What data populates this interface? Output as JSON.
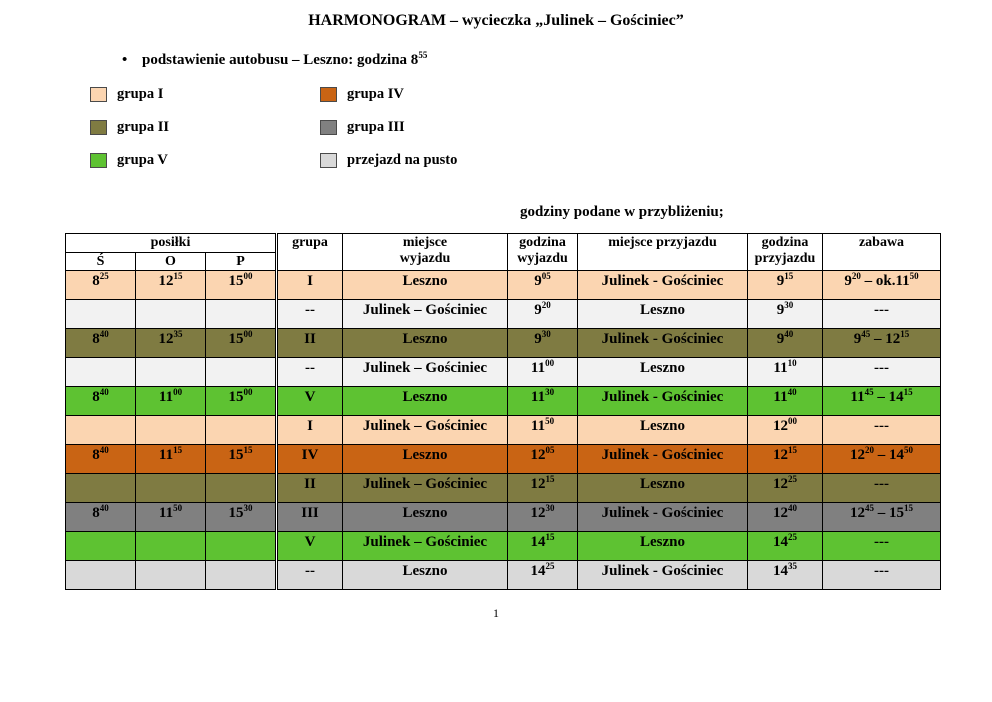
{
  "page": {
    "title": "HARMONOGRAM – wycieczka „Julinek – Gościniec”",
    "bullet_marker": "•",
    "bullet": "podstawienie autobusu – Leszno:  godzina 8^55",
    "note": "godziny podane w przybliżeniu;",
    "page_number": "1"
  },
  "colors": {
    "grupa1": "#FBD5B1",
    "grupa2": "#7F7B42",
    "grupa3": "#808080",
    "grupa4": "#C96414",
    "grupa5": "#5EC232",
    "pusto": "#D9D9D9",
    "pusto_light": "#F2F2F2"
  },
  "legend": {
    "column1": [
      {
        "label": "grupa I",
        "color": "grupa1"
      },
      {
        "label": "grupa II",
        "color": "grupa2"
      },
      {
        "label": "grupa V",
        "color": "grupa5"
      }
    ],
    "column2": [
      {
        "label": "grupa IV",
        "color": "grupa4"
      },
      {
        "label": "grupa III",
        "color": "grupa3"
      },
      {
        "label": "przejazd na pusto",
        "color": "pusto"
      }
    ]
  },
  "table": {
    "header": {
      "posilki": "posiłki",
      "s": "Ś",
      "o": "O",
      "p": "P",
      "grupa": "grupa",
      "miejsce_wyjazdu": "miejsce\nwyjazdu",
      "godzina_wyjazdu": "godzina\nwyjazdu",
      "miejsce_przyjazdu": "miejsce przyjazdu",
      "godzina_przyjazdu": "godzina\nprzyjazdu",
      "zabawa": "zabawa"
    },
    "rows": [
      {
        "color": "grupa1",
        "s": "8^25",
        "o": "12^15",
        "p": "15^00",
        "grupa": "I",
        "from": "Leszno",
        "dep": "9^05",
        "to": "Julinek - Gościniec",
        "arr": "9^15",
        "zabawa": "9^20 – ok.11^50"
      },
      {
        "color": "pusto_light",
        "s": "",
        "o": "",
        "p": "",
        "grupa": "--",
        "from": "Julinek – Gościniec",
        "dep": "9^20",
        "to": "Leszno",
        "arr": "9^30",
        "zabawa": "---"
      },
      {
        "color": "grupa2",
        "s": "8^40",
        "o": "12^35",
        "p": "15^00",
        "grupa": "II",
        "from": "Leszno",
        "dep": "9^30",
        "to": "Julinek - Gościniec",
        "arr": "9^40",
        "zabawa": "9^45 – 12^15"
      },
      {
        "color": "pusto_light",
        "s": "",
        "o": "",
        "p": "",
        "grupa": "--",
        "from": "Julinek – Gościniec",
        "dep": "11^00",
        "to": "Leszno",
        "arr": "11^10",
        "zabawa": "---"
      },
      {
        "color": "grupa5",
        "s": "8^40",
        "o": "11^00",
        "p": "15^00",
        "grupa": "V",
        "from": "Leszno",
        "dep": "11^30",
        "to": "Julinek - Gościniec",
        "arr": "11^40",
        "zabawa": "11^45 – 14^15"
      },
      {
        "color": "grupa1",
        "s": "",
        "o": "",
        "p": "",
        "grupa": "I",
        "from": "Julinek – Gościniec",
        "dep": "11^50",
        "to": "Leszno",
        "arr": "12^00",
        "zabawa": "---"
      },
      {
        "color": "grupa4",
        "s": "8^40",
        "o": "11^15",
        "p": "15^15",
        "grupa": "IV",
        "from": "Leszno",
        "dep": "12^05",
        "to": "Julinek - Gościniec",
        "arr": "12^15",
        "zabawa": "12^20 – 14^50"
      },
      {
        "color": "grupa2",
        "s": "",
        "o": "",
        "p": "",
        "grupa": "II",
        "from": "Julinek – Gościniec",
        "dep": "12^15",
        "to": "Leszno",
        "arr": "12^25",
        "zabawa": "---"
      },
      {
        "color": "grupa3",
        "s": "8^40",
        "o": "11^50",
        "p": "15^30",
        "grupa": "III",
        "from": "Leszno",
        "dep": "12^30",
        "to": "Julinek - Gościniec",
        "arr": "12^40",
        "zabawa": "12^45 – 15^15"
      },
      {
        "color": "grupa5",
        "s": "",
        "o": "",
        "p": "",
        "grupa": "V",
        "from": "Julinek – Gościniec",
        "dep": "14^15",
        "to": "Leszno",
        "arr": "14^25",
        "zabawa": "---"
      },
      {
        "color": "pusto",
        "s": "",
        "o": "",
        "p": "",
        "grupa": "--",
        "from": "Leszno",
        "dep": "14^25",
        "to": "Julinek - Gościniec",
        "arr": "14^35",
        "zabawa": "---"
      }
    ]
  }
}
